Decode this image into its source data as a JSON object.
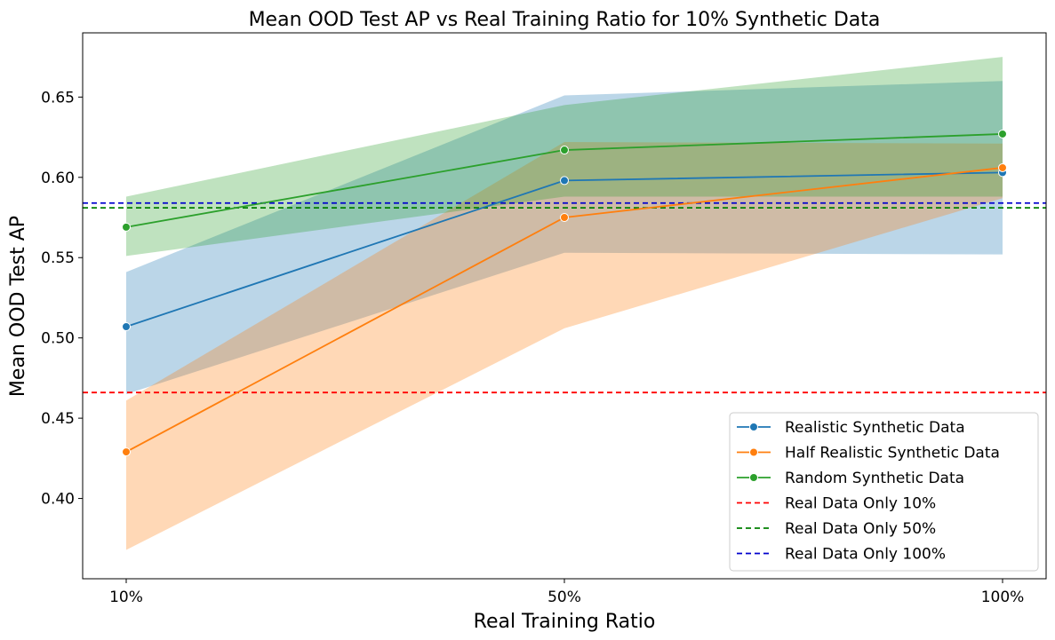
{
  "chart_data": {
    "type": "line",
    "title": "Mean OOD Test AP vs Real Training Ratio for 10% Synthetic Data",
    "xlabel": "Real Training Ratio",
    "ylabel": "Mean OOD Test AP",
    "categories": [
      "10%",
      "50%",
      "100%"
    ],
    "ylim": [
      0.35,
      0.69
    ],
    "yticks": [
      0.4,
      0.45,
      0.5,
      0.55,
      0.6,
      0.65
    ],
    "ytick_labels": [
      "0.40",
      "0.45",
      "0.50",
      "0.55",
      "0.60",
      "0.65"
    ],
    "grid": false,
    "legend_position": "bottom-right",
    "series": [
      {
        "name": "Realistic Synthetic Data",
        "color": "#1f77b4",
        "values": [
          0.507,
          0.598,
          0.603
        ],
        "lower": [
          0.465,
          0.553,
          0.552
        ],
        "upper": [
          0.541,
          0.651,
          0.66
        ]
      },
      {
        "name": "Half Realistic Synthetic Data",
        "color": "#ff7f0e",
        "values": [
          0.429,
          0.575,
          0.606
        ],
        "lower": [
          0.368,
          0.506,
          0.587
        ],
        "upper": [
          0.461,
          0.622,
          0.621
        ]
      },
      {
        "name": "Random Synthetic Data",
        "color": "#2ca02c",
        "values": [
          0.569,
          0.617,
          0.627
        ],
        "lower": [
          0.551,
          0.588,
          0.588
        ],
        "upper": [
          0.588,
          0.645,
          0.675
        ]
      }
    ],
    "reference_lines": [
      {
        "name": "Real Data Only 10%",
        "color": "#ff0000",
        "value": 0.466
      },
      {
        "name": "Real Data Only 50%",
        "color": "#008000",
        "value": 0.581
      },
      {
        "name": "Real Data Only 100%",
        "color": "#0000cd",
        "value": 0.584
      }
    ]
  }
}
